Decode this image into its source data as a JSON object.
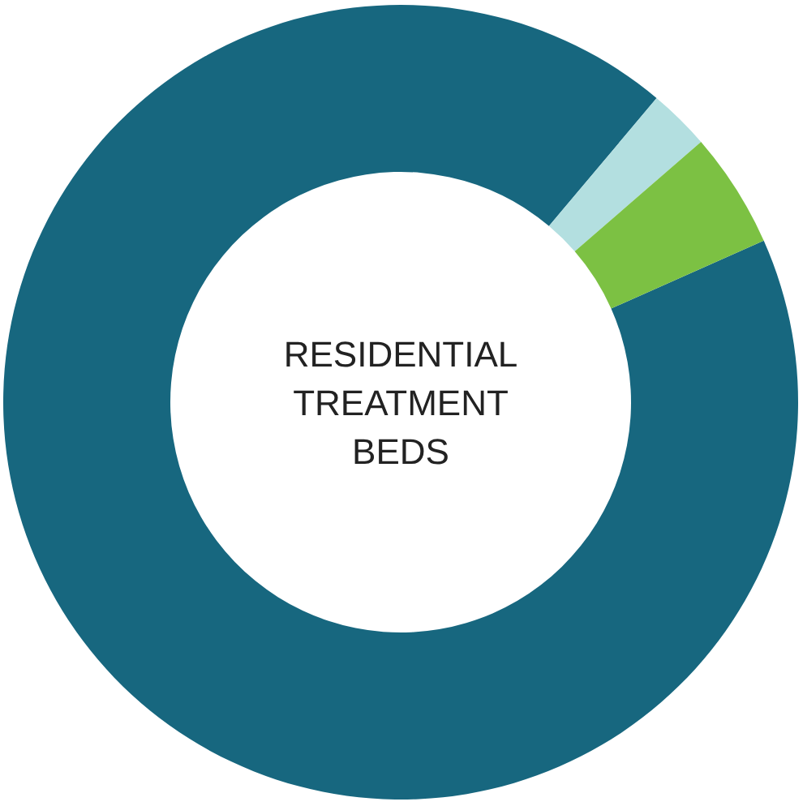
{
  "chart_data": {
    "type": "donut",
    "title": "RESIDENTIAL TREATMENT BEDS",
    "categories": [
      null,
      null,
      null
    ],
    "values": [
      92.8,
      2.5,
      4.7
    ],
    "colors": [
      "#17677f",
      "#b3dfe0",
      "#7cc143"
    ]
  }
}
